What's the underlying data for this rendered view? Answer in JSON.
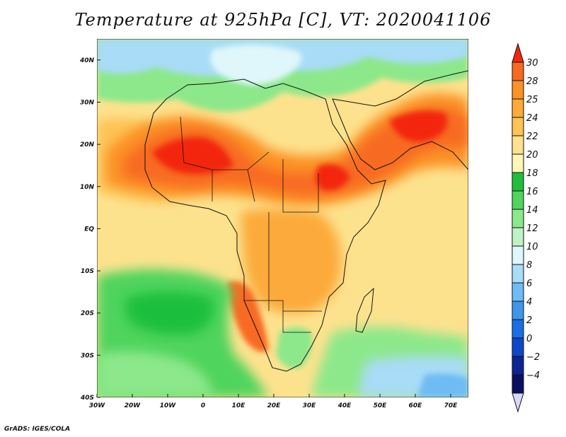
{
  "title": "Temperature at 925hPa [C], VT: 2020041106",
  "credit": "GrADS: IGES/COLA",
  "map": {
    "lon_range": [
      -30,
      75
    ],
    "lat_range": [
      -40,
      45
    ],
    "x_ticks": [
      "30W",
      "20W",
      "10W",
      "0",
      "10E",
      "20E",
      "30E",
      "40E",
      "50E",
      "60E",
      "70E"
    ],
    "y_ticks": [
      "40N",
      "30N",
      "20N",
      "10N",
      "EQ",
      "10S",
      "20S",
      "30S",
      "40S"
    ]
  },
  "colorbar": {
    "labels": [
      "30",
      "28",
      "25",
      "24",
      "22",
      "20",
      "18",
      "16",
      "14",
      "12",
      "10",
      "8",
      "6",
      "4",
      "2",
      "0",
      "−2",
      "−4"
    ],
    "colors": [
      "#f3270f",
      "#f86a20",
      "#fb9226",
      "#fcaa3a",
      "#fdc354",
      "#fde28e",
      "#fff6b8",
      "#1fbf3c",
      "#50d45d",
      "#8ce88a",
      "#bff2c4",
      "#dff7fb",
      "#a8dcf7",
      "#6ebcf3",
      "#3e96ec",
      "#1b6ee3",
      "#0f47c9",
      "#0c2494",
      "#0a1060",
      "#d8d8f8"
    ]
  },
  "colors": {
    "ocean_tropical": "#fde28e",
    "ocean_south": "#50d45d",
    "ocean_cold": "#a8dcf7",
    "hot": "#f3270f",
    "warm": "#fb9226",
    "mild": "#fcaa3a",
    "cool": "#bff2c4",
    "border": "#111111"
  }
}
